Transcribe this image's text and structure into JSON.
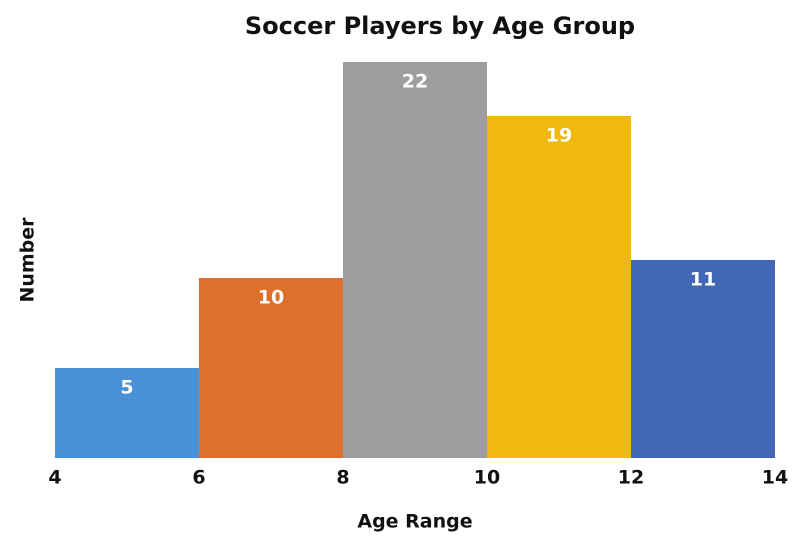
{
  "chart_data": {
    "type": "histogram",
    "title": "Soccer Players by Age Group",
    "x_label": "Age Range",
    "y_label": "Number",
    "bins": [
      4,
      6,
      8,
      10,
      12,
      14
    ],
    "counts": [
      5,
      10,
      22,
      19,
      11
    ],
    "colors": [
      "#4a90d4",
      "#df6f2c",
      "#9d9e9d",
      "#efb90f",
      "#4268b5"
    ],
    "xlim": [
      4,
      14
    ],
    "xticks": [
      4,
      6,
      8,
      10,
      12,
      14
    ],
    "ylim": [
      0,
      22
    ]
  }
}
